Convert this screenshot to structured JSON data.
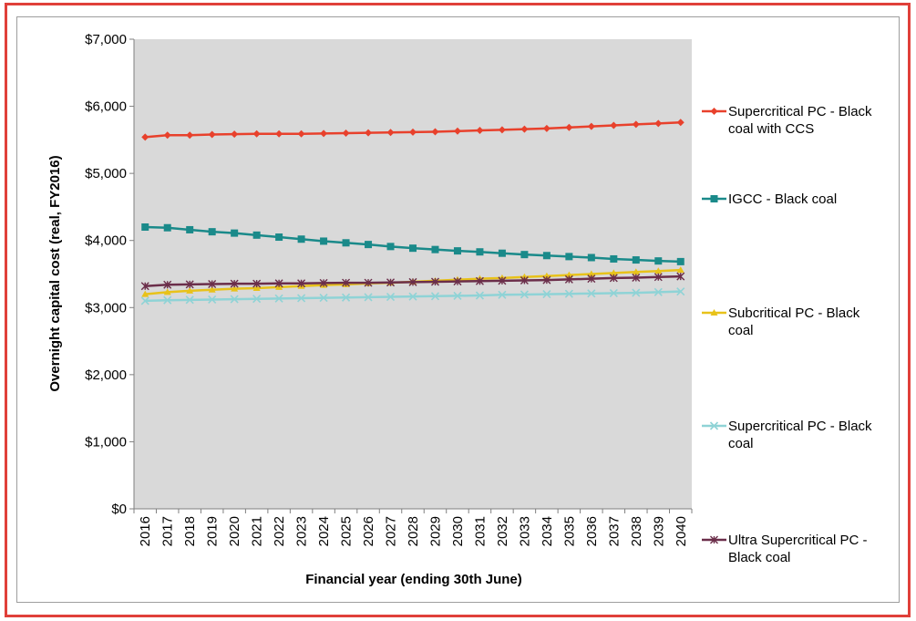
{
  "chart_data": {
    "type": "line",
    "title": "",
    "xlabel": "Financial year (ending 30th June)",
    "ylabel": "Overnight capital cost (real, FY2016)",
    "ylim": [
      0,
      7000
    ],
    "yticks": [
      "$0",
      "$1,000",
      "$2,000",
      "$3,000",
      "$4,000",
      "$5,000",
      "$6,000",
      "$7,000"
    ],
    "ytick_values": [
      0,
      1000,
      2000,
      3000,
      4000,
      5000,
      6000,
      7000
    ],
    "categories": [
      "2016",
      "2017",
      "2018",
      "2019",
      "2020",
      "2021",
      "2022",
      "2023",
      "2024",
      "2025",
      "2026",
      "2027",
      "2028",
      "2029",
      "2030",
      "2031",
      "2032",
      "2033",
      "2034",
      "2035",
      "2036",
      "2037",
      "2038",
      "2039",
      "2040"
    ],
    "grid": false,
    "plot_background": "#d9d9d9",
    "legend_position": "right",
    "series": [
      {
        "name": "Supercritical PC - Black coal with CCS",
        "legend_lines": [
          "Supercritical PC - Black",
          "coal with CCS"
        ],
        "color": "#e8412c",
        "marker": "diamond",
        "values": [
          5540,
          5570,
          5570,
          5580,
          5585,
          5590,
          5590,
          5590,
          5595,
          5600,
          5605,
          5610,
          5615,
          5620,
          5630,
          5640,
          5650,
          5660,
          5670,
          5685,
          5700,
          5715,
          5730,
          5745,
          5760
        ]
      },
      {
        "name": "IGCC - Black coal",
        "legend_lines": [
          "IGCC - Black coal"
        ],
        "color": "#1a8a8a",
        "marker": "square",
        "values": [
          4200,
          4190,
          4160,
          4130,
          4110,
          4080,
          4050,
          4020,
          3990,
          3965,
          3940,
          3910,
          3885,
          3865,
          3845,
          3830,
          3810,
          3790,
          3775,
          3760,
          3745,
          3725,
          3710,
          3695,
          3685
        ]
      },
      {
        "name": "Subcritical PC - Black coal",
        "legend_lines": [
          "Subcritical PC - Black",
          "coal"
        ],
        "color": "#e8c21a",
        "marker": "triangle",
        "values": [
          3200,
          3230,
          3250,
          3265,
          3280,
          3290,
          3305,
          3320,
          3335,
          3345,
          3360,
          3370,
          3385,
          3400,
          3415,
          3430,
          3440,
          3455,
          3470,
          3485,
          3500,
          3515,
          3530,
          3545,
          3560
        ]
      },
      {
        "name": "Supercritical PC - Black coal",
        "legend_lines": [
          "Supercritical PC - Black",
          "coal"
        ],
        "color": "#8fd3d6",
        "marker": "x",
        "values": [
          3100,
          3110,
          3115,
          3120,
          3125,
          3130,
          3135,
          3140,
          3145,
          3150,
          3155,
          3160,
          3165,
          3170,
          3175,
          3180,
          3190,
          3195,
          3200,
          3205,
          3210,
          3215,
          3220,
          3230,
          3240
        ]
      },
      {
        "name": "Ultra Supercritical PC - Black coal",
        "legend_lines": [
          "Ultra Supercritical PC -",
          "Black coal"
        ],
        "color": "#6b2e4a",
        "marker": "asterisk",
        "values": [
          3320,
          3340,
          3345,
          3350,
          3355,
          3355,
          3360,
          3360,
          3365,
          3370,
          3370,
          3375,
          3380,
          3385,
          3390,
          3395,
          3400,
          3405,
          3410,
          3420,
          3430,
          3440,
          3445,
          3455,
          3465
        ]
      }
    ]
  }
}
